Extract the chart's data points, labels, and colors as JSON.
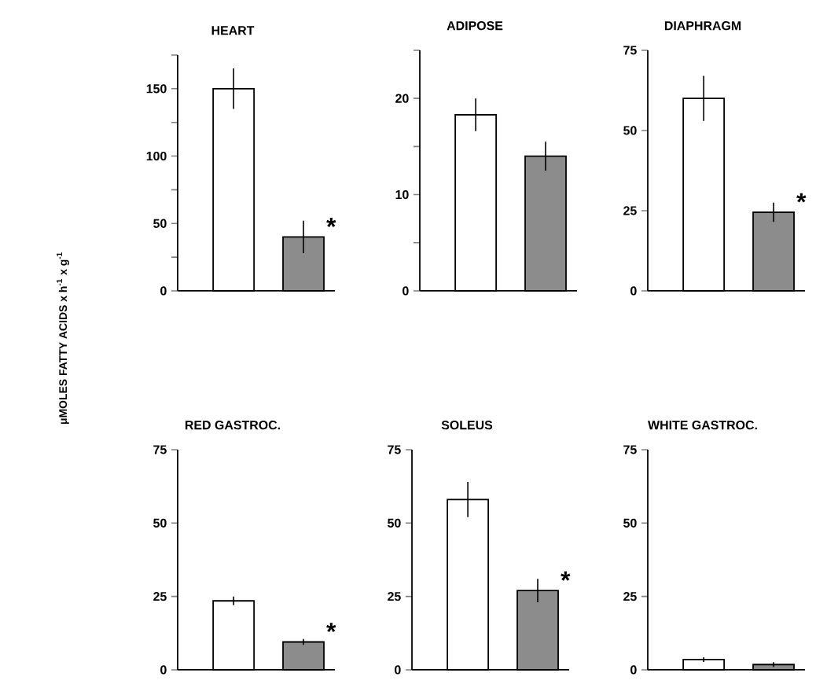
{
  "chart_data": [
    {
      "type": "bar",
      "title": "HEART",
      "ylabel": "μMOLES FATTY ACIDS x h$^{-1}$ x g$^{-1}$",
      "categories": [
        null,
        null
      ],
      "values": [
        150,
        40
      ],
      "errors": [
        15,
        12
      ],
      "colors": [
        "#ffffff",
        "#8c8c8c"
      ],
      "ylim": [
        0,
        175
      ],
      "yticks": [
        0,
        {
          "value": 25,
          "label": null
        },
        50,
        {
          "value": 75,
          "label": null
        },
        100,
        {
          "value": 125,
          "label": null
        },
        150,
        {
          "value": 175,
          "label": null
        }
      ],
      "annotations": [
        "*"
      ]
    },
    {
      "type": "bar",
      "title": "ADIPOSE",
      "categories": [
        null,
        null
      ],
      "values": [
        18.3,
        14
      ],
      "errors": [
        1.7,
        1.5
      ],
      "colors": [
        "#ffffff",
        "#8c8c8c"
      ],
      "ylim": [
        0,
        25
      ],
      "yticks": [
        0,
        {
          "value": 5,
          "label": null
        },
        10,
        {
          "value": 15,
          "label": null
        },
        20,
        {
          "value": 25,
          "label": null
        }
      ]
    },
    {
      "type": "bar",
      "title": "DIAPHRAGM",
      "categories": [
        null,
        null
      ],
      "values": [
        60,
        24.5
      ],
      "errors": [
        7,
        3
      ],
      "colors": [
        "#ffffff",
        "#8c8c8c"
      ],
      "ylim": [
        0,
        75
      ],
      "yticks": [
        0,
        25,
        50,
        75
      ],
      "annotations": [
        "*"
      ]
    },
    {
      "type": "bar",
      "title": "RED GASTROC.",
      "categories": [
        null,
        null
      ],
      "values": [
        23.5,
        9.5
      ],
      "errors": [
        1.5,
        1
      ],
      "colors": [
        "#ffffff",
        "#8c8c8c"
      ],
      "ylim": [
        0,
        75
      ],
      "yticks": [
        0,
        25,
        50,
        75
      ],
      "annotations": [
        "*"
      ]
    },
    {
      "type": "bar",
      "title": "SOLEUS",
      "categories": [
        null,
        null
      ],
      "values": [
        58,
        27
      ],
      "errors": [
        6,
        4
      ],
      "colors": [
        "#ffffff",
        "#8c8c8c"
      ],
      "ylim": [
        0,
        75
      ],
      "yticks": [
        0,
        25,
        50,
        75
      ],
      "annotations": [
        "*"
      ]
    },
    {
      "type": "bar",
      "title": "WHITE GASTROC.",
      "categories": [
        null,
        null
      ],
      "values": [
        3.5,
        1.8
      ],
      "errors": [
        0.8,
        0.8
      ],
      "colors": [
        "#ffffff",
        "#8c8c8c"
      ],
      "ylim": [
        0,
        75
      ],
      "yticks": [
        0,
        25,
        50,
        75
      ]
    }
  ]
}
